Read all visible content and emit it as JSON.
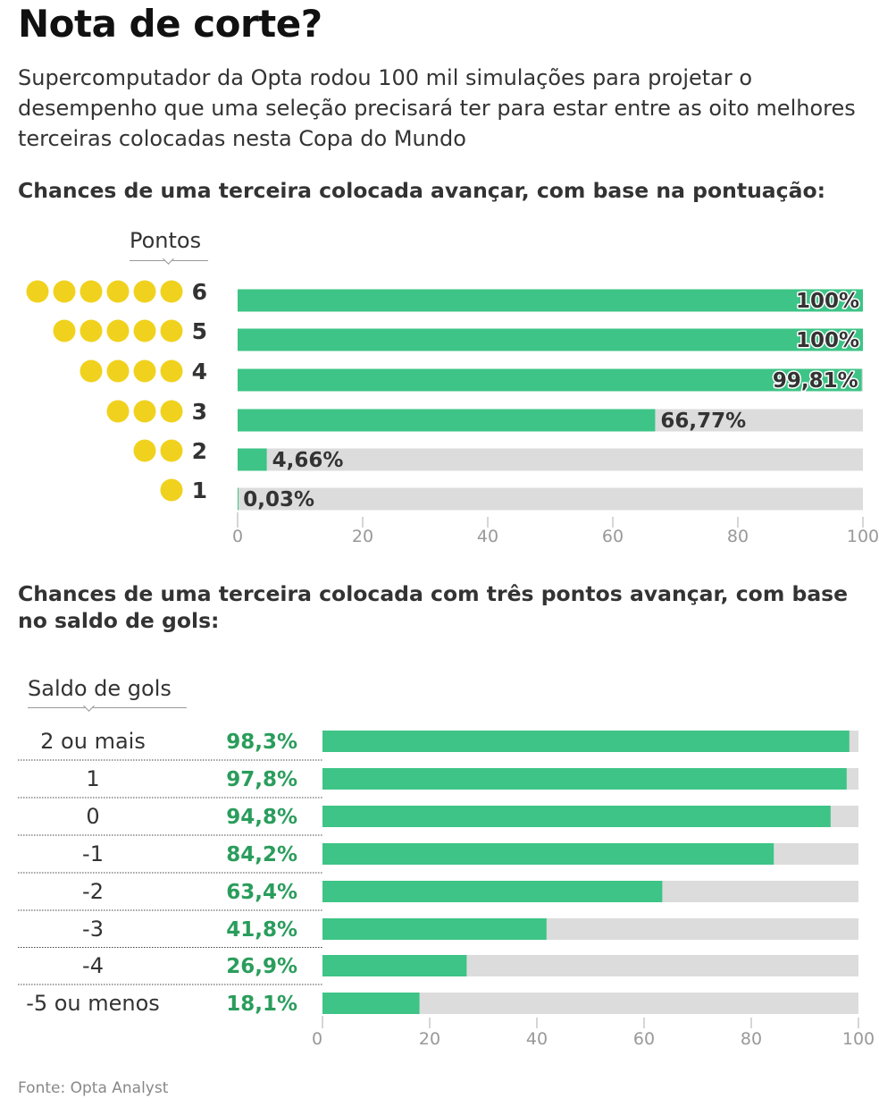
{
  "title": "Nota de corte?",
  "subtitle": "Supercomputador da Opta rodou 100 mil simulações para projetar o desempenho que uma seleção precisará ter para estar entre as oito melhores terceiras colocadas nesta Copa do Mundo",
  "source": "Fonte: Opta Analyst",
  "colors": {
    "bar": "#3dc486",
    "track": "#dcdcdc",
    "dot": "#f0d21e",
    "green_text": "#2a9d5c"
  },
  "chart_data": [
    {
      "type": "bar",
      "orientation": "horizontal",
      "title": "Chances de uma terceira colocada avançar, com base na pontuação:",
      "category_header": "Pontos",
      "categories": [
        "6",
        "5",
        "4",
        "3",
        "2",
        "1"
      ],
      "values": [
        100,
        100,
        99.81,
        66.77,
        4.66,
        0.03
      ],
      "value_labels": [
        "100%",
        "100%",
        "99,81%",
        "66,77%",
        "4,66%",
        "0,03%"
      ],
      "xlim": [
        0,
        100
      ],
      "xticks": [
        "0",
        "20",
        "40",
        "60",
        "80",
        "100"
      ],
      "grid": false
    },
    {
      "type": "bar",
      "orientation": "horizontal",
      "title": "Chances de uma terceira colocada com três pontos avançar, com base no saldo de gols:",
      "category_header": "Saldo de gols",
      "categories": [
        "2 ou mais",
        "1",
        "0",
        "-1",
        "-2",
        "-3",
        "-4",
        "-5 ou menos"
      ],
      "values": [
        98.3,
        97.8,
        94.8,
        84.2,
        63.4,
        41.8,
        26.9,
        18.1
      ],
      "value_labels": [
        "98,3%",
        "97,8%",
        "94,8%",
        "84,2%",
        "63,4%",
        "41,8%",
        "26,9%",
        "18,1%"
      ],
      "xlim": [
        0,
        100
      ],
      "xticks": [
        "0",
        "20",
        "40",
        "60",
        "80",
        "100"
      ],
      "grid": false
    }
  ]
}
